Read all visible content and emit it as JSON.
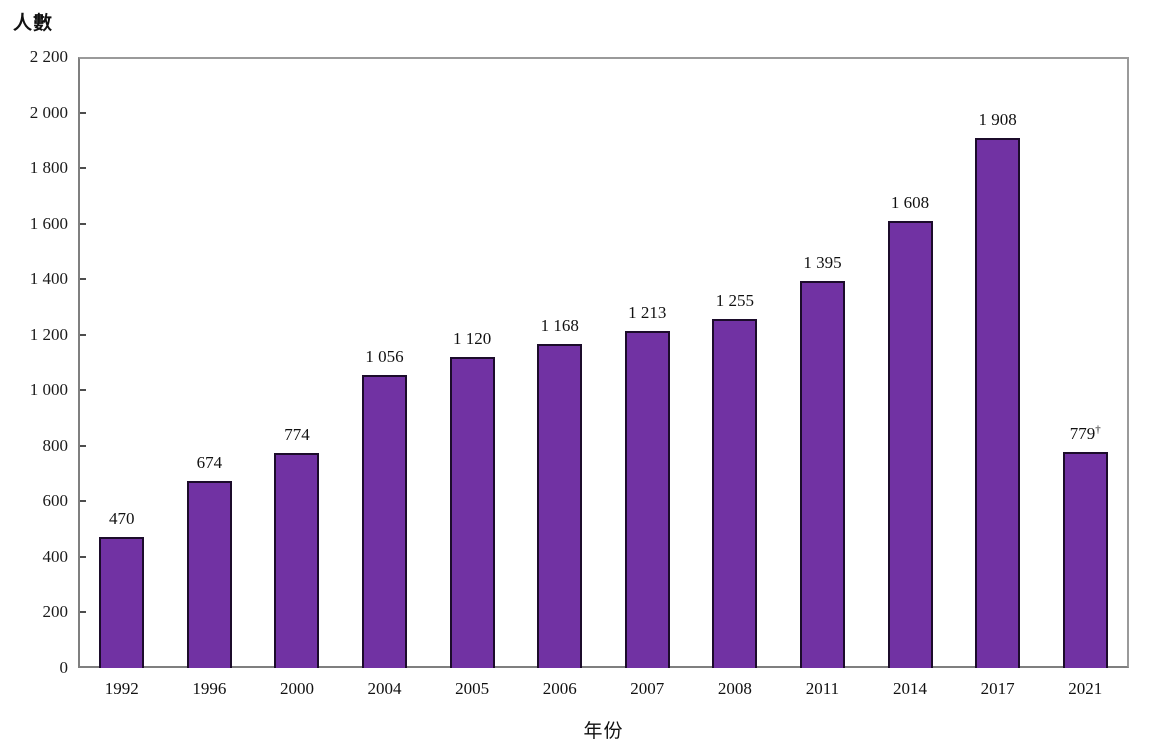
{
  "chart_data": {
    "type": "bar",
    "title": "",
    "ylabel": "人數",
    "xlabel": "年份",
    "ylim": [
      0,
      2200
    ],
    "y_tick_step": 200,
    "grid": false,
    "legend": "none",
    "bar_color": "#7132a3",
    "bar_border_color": "#1c0c2b",
    "axis_color": "#7f7f7f",
    "categories": [
      "1992",
      "1996",
      "2000",
      "2004",
      "2005",
      "2006",
      "2007",
      "2008",
      "2011",
      "2014",
      "2017",
      "2021"
    ],
    "values": [
      470,
      674,
      774,
      1056,
      1120,
      1168,
      1213,
      1255,
      1395,
      1608,
      1908,
      779
    ],
    "value_labels": [
      "470",
      "674",
      "774",
      "1 056",
      "1 120",
      "1 168",
      "1 213",
      "1 255",
      "1 395",
      "1 608",
      "1 908",
      "779†"
    ],
    "y_ticks": [
      {
        "value": 0,
        "label": "0"
      },
      {
        "value": 200,
        "label": "200"
      },
      {
        "value": 400,
        "label": "400"
      },
      {
        "value": 600,
        "label": "600"
      },
      {
        "value": 800,
        "label": "800"
      },
      {
        "value": 1000,
        "label": "1 000"
      },
      {
        "value": 1200,
        "label": "1 200"
      },
      {
        "value": 1400,
        "label": "1 400"
      },
      {
        "value": 1600,
        "label": "1 600"
      },
      {
        "value": 1800,
        "label": "1 800"
      },
      {
        "value": 2000,
        "label": "2 000"
      },
      {
        "value": 2200,
        "label": "2 200"
      }
    ]
  }
}
